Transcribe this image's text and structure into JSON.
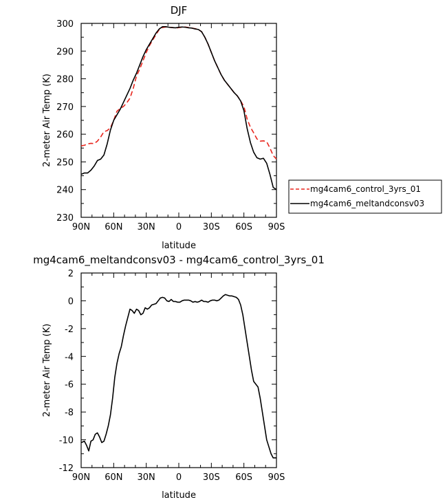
{
  "chart_data": [
    {
      "type": "line",
      "title": "DJF",
      "xlabel": "latitude",
      "ylabel": "2-meter Air Temp (K)",
      "xlim": [
        90,
        -90
      ],
      "ylim": [
        230,
        300
      ],
      "x_ticks": [
        {
          "value": 90,
          "label": "90N"
        },
        {
          "value": 60,
          "label": "60N"
        },
        {
          "value": 30,
          "label": "30N"
        },
        {
          "value": 0,
          "label": "0"
        },
        {
          "value": -30,
          "label": "30S"
        },
        {
          "value": -60,
          "label": "60S"
        },
        {
          "value": -90,
          "label": "90S"
        }
      ],
      "y_ticks": [
        {
          "value": 230,
          "label": "230"
        },
        {
          "value": 240,
          "label": "240"
        },
        {
          "value": 250,
          "label": "250"
        },
        {
          "value": 260,
          "label": "260"
        },
        {
          "value": 270,
          "label": "270"
        },
        {
          "value": 280,
          "label": "280"
        },
        {
          "value": 290,
          "label": "290"
        },
        {
          "value": 300,
          "label": "300"
        }
      ],
      "legend_position": "right",
      "series": [
        {
          "name": "mg4cam6_control_3yrs_01",
          "color": "#e8241c",
          "dash": "dashed",
          "x": [
            90,
            87,
            84,
            81,
            78,
            75,
            72,
            69,
            66,
            63,
            60,
            57,
            54,
            51,
            48,
            45,
            42,
            39,
            36,
            33,
            30,
            27,
            24,
            21,
            18,
            15,
            12,
            9,
            6,
            3,
            0,
            -3,
            -6,
            -9,
            -12,
            -15,
            -18,
            -21,
            -24,
            -27,
            -30,
            -33,
            -36,
            -39,
            -42,
            -45,
            -48,
            -51,
            -54,
            -57,
            -60,
            -63,
            -66,
            -69,
            -72,
            -75,
            -78,
            -81,
            -84,
            -87,
            -90
          ],
          "y": [
            255.8,
            256.0,
            256.5,
            256.7,
            256.6,
            257.5,
            259.0,
            260.9,
            261.3,
            262.3,
            265.0,
            268.3,
            269.3,
            270.0,
            271.3,
            273.0,
            276.5,
            281.0,
            283.5,
            286.5,
            289.5,
            292.0,
            294.0,
            296.0,
            297.8,
            298.5,
            298.7,
            298.6,
            298.5,
            298.3,
            298.5,
            298.6,
            298.7,
            298.5,
            298.3,
            298.1,
            297.8,
            297.0,
            295.0,
            292.5,
            289.5,
            286.5,
            284.0,
            281.5,
            279.5,
            278.0,
            276.5,
            275.0,
            273.8,
            272.0,
            270.0,
            265.5,
            262.5,
            260.5,
            258.3,
            257.5,
            257.6,
            257.3,
            255.0,
            252.3,
            251.0
          ]
        },
        {
          "name": "mg4cam6_meltandconsv03",
          "color": "#000000",
          "dash": "solid",
          "x": [
            90,
            87,
            84,
            81,
            78,
            75,
            72,
            69,
            66,
            63,
            60,
            57,
            54,
            51,
            48,
            45,
            42,
            39,
            36,
            33,
            30,
            27,
            24,
            21,
            18,
            15,
            12,
            9,
            6,
            3,
            0,
            -3,
            -6,
            -9,
            -12,
            -15,
            -18,
            -21,
            -24,
            -27,
            -30,
            -33,
            -36,
            -39,
            -42,
            -45,
            -48,
            -51,
            -54,
            -57,
            -60,
            -63,
            -66,
            -69,
            -72,
            -75,
            -78,
            -81,
            -84,
            -87,
            -90
          ],
          "y": [
            245.5,
            246.0,
            246.0,
            247.0,
            248.5,
            250.5,
            251.0,
            252.5,
            256.5,
            261.5,
            265.0,
            267.0,
            269.0,
            271.5,
            274.0,
            276.5,
            279.5,
            282.0,
            285.0,
            288.0,
            290.5,
            292.5,
            294.5,
            296.5,
            298.0,
            298.8,
            298.8,
            298.6,
            298.5,
            298.4,
            298.6,
            298.7,
            298.6,
            298.4,
            298.3,
            298.0,
            297.8,
            297.0,
            295.0,
            292.5,
            289.5,
            286.5,
            284.0,
            281.5,
            279.5,
            278.0,
            276.5,
            275.0,
            273.8,
            272.0,
            268.5,
            262.0,
            257.0,
            253.5,
            251.5,
            251.0,
            251.3,
            249.5,
            245.5,
            240.8,
            240.0
          ]
        }
      ]
    },
    {
      "type": "line",
      "title": "mg4cam6_meltandconsv03 - mg4cam6_control_3yrs_01",
      "xlabel": "latitude",
      "ylabel": "2-meter Air Temp (K)",
      "xlim": [
        90,
        -90
      ],
      "ylim": [
        -12,
        2
      ],
      "x_ticks": [
        {
          "value": 90,
          "label": "90N"
        },
        {
          "value": 60,
          "label": "60N"
        },
        {
          "value": 30,
          "label": "30N"
        },
        {
          "value": 0,
          "label": "0"
        },
        {
          "value": -30,
          "label": "30S"
        },
        {
          "value": -60,
          "label": "60S"
        },
        {
          "value": -90,
          "label": "90S"
        }
      ],
      "y_ticks": [
        {
          "value": -12,
          "label": "-12"
        },
        {
          "value": -10,
          "label": "-10"
        },
        {
          "value": -8,
          "label": "-8"
        },
        {
          "value": -6,
          "label": "-6"
        },
        {
          "value": -4,
          "label": "-4"
        },
        {
          "value": -2,
          "label": "-2"
        },
        {
          "value": 0,
          "label": "0"
        },
        {
          "value": 2,
          "label": "2"
        }
      ],
      "series": [
        {
          "color": "#000000",
          "dash": "solid",
          "x": [
            90,
            87,
            85,
            83,
            81,
            79,
            77,
            75,
            73,
            71,
            69,
            67,
            65,
            63,
            61,
            59,
            57,
            55,
            53,
            51,
            49,
            47,
            45,
            43,
            41,
            39,
            37,
            35,
            33,
            31,
            29,
            27,
            25,
            23,
            21,
            19,
            17,
            15,
            13,
            11,
            9,
            7,
            5,
            3,
            1,
            -1,
            -3,
            -5,
            -7,
            -9,
            -11,
            -13,
            -15,
            -17,
            -19,
            -21,
            -23,
            -25,
            -27,
            -29,
            -31,
            -33,
            -35,
            -37,
            -39,
            -41,
            -43,
            -45,
            -47,
            -49,
            -51,
            -53,
            -55,
            -57,
            -59,
            -61,
            -63,
            -65,
            -67,
            -69,
            -71,
            -73,
            -75,
            -77,
            -79,
            -81,
            -83,
            -85,
            -87,
            -89,
            -90
          ],
          "y": [
            -10.2,
            -10.1,
            -10.4,
            -10.8,
            -10.1,
            -10.0,
            -9.6,
            -9.5,
            -9.8,
            -10.2,
            -10.1,
            -9.6,
            -9.0,
            -8.2,
            -7.0,
            -5.5,
            -4.5,
            -3.8,
            -3.3,
            -2.5,
            -1.8,
            -1.2,
            -0.6,
            -0.7,
            -0.9,
            -0.6,
            -0.7,
            -1.0,
            -0.9,
            -0.5,
            -0.6,
            -0.5,
            -0.3,
            -0.25,
            -0.2,
            0.0,
            0.2,
            0.25,
            0.2,
            0.0,
            -0.05,
            0.1,
            -0.05,
            -0.05,
            -0.1,
            -0.1,
            0.0,
            0.05,
            0.05,
            0.05,
            0.0,
            -0.1,
            -0.05,
            -0.1,
            -0.05,
            0.05,
            -0.05,
            -0.05,
            -0.1,
            0.0,
            0.05,
            0.05,
            0.0,
            0.05,
            0.2,
            0.35,
            0.45,
            0.4,
            0.35,
            0.35,
            0.3,
            0.25,
            0.1,
            -0.3,
            -1.0,
            -2.0,
            -3.0,
            -4.0,
            -5.0,
            -5.8,
            -6.0,
            -6.2,
            -7.0,
            -8.0,
            -9.0,
            -10.0,
            -10.5,
            -11.0,
            -11.3,
            -11.3,
            -11.3
          ]
        }
      ]
    }
  ]
}
